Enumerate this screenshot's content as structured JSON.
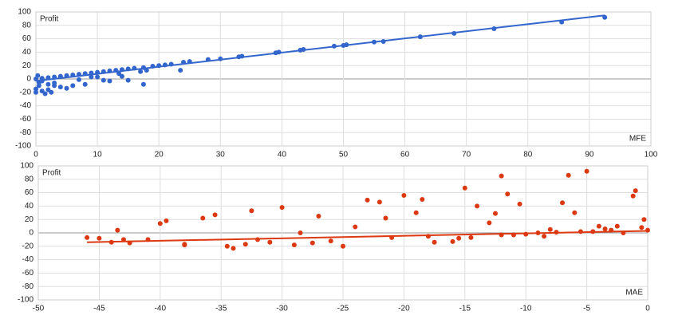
{
  "chart_data": [
    {
      "type": "scatter",
      "y_label": "Profit",
      "x_label": "MFE",
      "color": "#3366cc",
      "grid": true,
      "xlim": [
        0,
        100
      ],
      "xticks": [
        0,
        10,
        20,
        30,
        40,
        50,
        60,
        70,
        80,
        90,
        100
      ],
      "ylim": [
        -100,
        100
      ],
      "yticks": [
        -100,
        -80,
        -60,
        -40,
        -20,
        0,
        20,
        40,
        60,
        80,
        100
      ],
      "trendline": {
        "x": [
          0,
          92.5
        ],
        "y": [
          -3,
          95
        ]
      },
      "x": [
        92.5,
        85.5,
        74.5,
        68,
        62.5,
        56.5,
        55,
        50.5,
        50,
        48.5,
        43.5,
        43,
        39.5,
        39,
        33.5,
        33,
        30,
        28,
        25,
        24,
        22,
        21,
        20,
        19,
        18,
        17,
        17.5,
        16,
        15,
        14,
        14,
        13.5,
        13,
        12,
        11,
        11,
        10,
        9,
        9,
        8,
        8,
        7,
        7,
        6,
        6,
        5,
        5,
        4,
        4,
        3,
        3,
        2,
        2,
        1,
        1,
        0.5,
        0,
        0,
        0.5,
        1.5,
        2.5,
        3,
        2,
        1,
        0,
        0.3,
        23.5,
        17.5,
        15,
        12,
        10
      ],
      "y": [
        92,
        85,
        75,
        68,
        63,
        56,
        55,
        51,
        50,
        49,
        44,
        43,
        40,
        39,
        34,
        33,
        30,
        29,
        26,
        25,
        22,
        21,
        20,
        19,
        13,
        11,
        17,
        16,
        15,
        14,
        4,
        8,
        13,
        12,
        11,
        -2,
        10,
        9,
        3,
        8,
        -8,
        7,
        -1,
        6,
        -10,
        5,
        -14,
        4,
        -12,
        3,
        -10,
        2,
        -16,
        1,
        -18,
        -10,
        -20,
        0,
        -5,
        -22,
        -20,
        -6,
        -8,
        -3,
        -15,
        5,
        13,
        -8,
        -2,
        -3,
        3
      ]
    },
    {
      "type": "scatter",
      "y_label": "Profit",
      "x_label": "MAE",
      "color": "#dc3912",
      "grid": true,
      "xlim": [
        -50,
        0
      ],
      "xticks": [
        -50,
        -45,
        -40,
        -35,
        -30,
        -25,
        -20,
        -15,
        -10,
        -5,
        0
      ],
      "ylim": [
        -100,
        100
      ],
      "yticks": [
        -100,
        -80,
        -60,
        -40,
        -20,
        0,
        20,
        40,
        60,
        80,
        100
      ],
      "trendline": {
        "x": [
          -46,
          0
        ],
        "y": [
          -14,
          3
        ]
      },
      "x": [
        -46,
        -44,
        -43.5,
        -43,
        -42.5,
        -41,
        -40,
        -39.5,
        -38,
        -36.5,
        -35.5,
        -34.5,
        -34,
        -33,
        -32.5,
        -32,
        -31,
        -30,
        -29,
        -28.5,
        -27,
        -26,
        -25,
        -24,
        -23,
        -22,
        -21.5,
        -21,
        -20,
        -19,
        -18.5,
        -17.5,
        -16,
        -15,
        -14.5,
        -14,
        -13,
        -12.5,
        -12,
        -11.5,
        -11,
        -10.5,
        -10,
        -9,
        -8,
        -7,
        -6.5,
        -6,
        -5.5,
        -5,
        -4,
        -3,
        -2,
        -1,
        -1.2,
        -0.5,
        0,
        -0.3,
        -18,
        -38,
        -45,
        -27.5,
        -15.5,
        -8.5,
        -4.5,
        -2.5,
        -12,
        -7.5,
        -3.5
      ],
      "y": [
        -7,
        -14,
        4,
        -10,
        -15,
        -10,
        14,
        18,
        -17,
        22,
        27,
        -20,
        -23,
        -17,
        33,
        -10,
        -14,
        38,
        -18,
        0,
        25,
        -12,
        -20,
        9,
        49,
        46,
        22,
        -7,
        56,
        30,
        50,
        -14,
        -13,
        67,
        -7,
        40,
        15,
        29,
        85,
        58,
        -3,
        43,
        -2,
        0,
        5,
        45,
        86,
        30,
        2,
        92,
        10,
        4,
        0,
        63,
        55,
        8,
        4,
        20,
        -5,
        -18,
        -8,
        -15,
        -8,
        -5,
        2,
        10,
        -3,
        1,
        6
      ]
    }
  ]
}
